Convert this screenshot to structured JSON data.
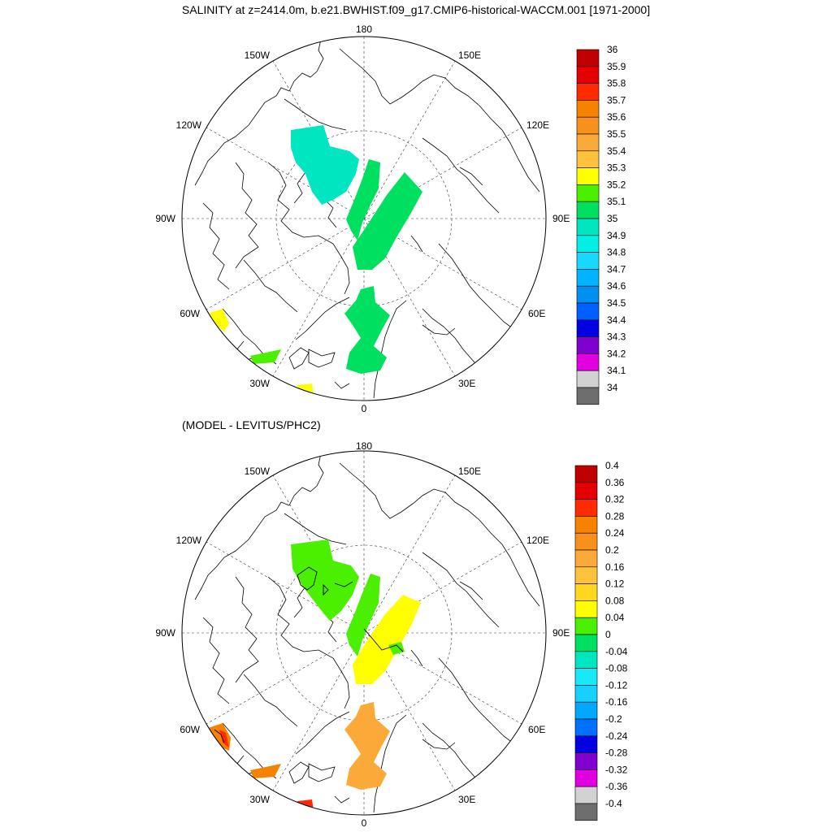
{
  "title": "SALINITY at z=2414.0m, b.e21.BWHIST.f09_g17.CMIP6-historical-WACCM.001 [1971-2000]",
  "diff_title": "(MODEL - LEVITUS/PHC2)",
  "longitude_labels": {
    "top": "180",
    "bottom": "0",
    "left": "90W",
    "right": "90E",
    "upper_left_1": "150W",
    "upper_left_2": "120W",
    "upper_right_1": "150E",
    "upper_right_2": "120E",
    "lower_left_1": "60W",
    "lower_left_2": "30W",
    "lower_right_1": "60E",
    "lower_right_2": "30E"
  },
  "colorbar_top": {
    "labels": [
      "36",
      "35.9",
      "35.8",
      "35.7",
      "35.6",
      "35.5",
      "35.4",
      "35.3",
      "35.2",
      "35.1",
      "35",
      "34.9",
      "34.8",
      "34.7",
      "34.6",
      "34.5",
      "34.4",
      "34.3",
      "34.2",
      "34.1",
      "34"
    ],
    "colors": [
      "#c00000",
      "#e40000",
      "#ff2a00",
      "#f58200",
      "#f8911c",
      "#fbaa3a",
      "#ffc23c",
      "#ffff00",
      "#4af000",
      "#00e060",
      "#00e6c0",
      "#00f0e8",
      "#18d8ff",
      "#00b4ff",
      "#0090f0",
      "#0060ff",
      "#0000e0",
      "#8000d0",
      "#e000e0",
      "#d2d2d2",
      "#6e6e6e"
    ]
  },
  "colorbar_bottom": {
    "labels": [
      "0.4",
      "0.36",
      "0.32",
      "0.28",
      "0.24",
      "0.2",
      "0.16",
      "0.12",
      "0.08",
      "0.04",
      "0",
      "-0.04",
      "-0.08",
      "-0.12",
      "-0.16",
      "-0.2",
      "-0.24",
      "-0.28",
      "-0.32",
      "-0.36",
      "-0.4"
    ],
    "colors": [
      "#c00000",
      "#e40000",
      "#ff2a00",
      "#f58200",
      "#f8911c",
      "#fbaa3a",
      "#ffc23c",
      "#ffd81e",
      "#ffff00",
      "#4af000",
      "#00e060",
      "#00e6c0",
      "#18e8f8",
      "#18d0ff",
      "#00a8ff",
      "#0070ff",
      "#0000e0",
      "#8000d0",
      "#e000e0",
      "#d2d2d2",
      "#6e6e6e"
    ]
  },
  "top_panel_colors": {
    "canada_basin": "#00e6c0",
    "eurasian_basin": "#00e060",
    "nordic_seas": "#00e060",
    "labrador_sea": "#ffff00",
    "irminger": "#4af000",
    "iceland_south": "#ffff00"
  },
  "bottom_panel_colors": {
    "canada_basin": "#4af000",
    "eurasian_basin": "#ffff00",
    "eurasian_edge": "#4af000",
    "nordic_seas": "#fbaa3a",
    "labrador_sea": "#f58200",
    "labrador_core": "#ff2a00",
    "irminger": "#f58200",
    "iceland_south": "#ff2a00"
  }
}
